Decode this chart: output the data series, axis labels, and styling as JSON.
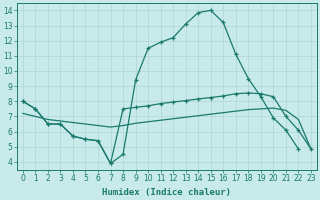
{
  "xlabel": "Humidex (Indice chaleur)",
  "background_color": "#c8eaea",
  "line_color": "#1a7a6e",
  "grid_color": "#b0d4d4",
  "xlim": [
    -0.5,
    23.5
  ],
  "ylim": [
    3.5,
    14.5
  ],
  "xticks": [
    0,
    1,
    2,
    3,
    4,
    5,
    6,
    7,
    8,
    9,
    10,
    11,
    12,
    13,
    14,
    15,
    16,
    17,
    18,
    19,
    20,
    21,
    22,
    23
  ],
  "yticks": [
    4,
    5,
    6,
    7,
    8,
    9,
    10,
    11,
    12,
    13,
    14
  ],
  "line1_x": [
    0,
    1,
    2,
    3,
    4,
    5,
    6,
    7,
    8,
    9,
    10,
    11,
    12,
    13,
    14,
    15,
    16,
    17,
    18,
    19,
    20,
    21,
    22
  ],
  "line1_y": [
    8.0,
    7.5,
    6.5,
    6.5,
    5.7,
    5.5,
    5.4,
    3.9,
    4.5,
    9.4,
    11.5,
    11.9,
    12.2,
    13.1,
    13.85,
    14.0,
    13.2,
    11.1,
    9.5,
    8.3,
    6.9,
    6.1,
    4.85
  ],
  "line2_x": [
    0,
    1,
    2,
    3,
    4,
    5,
    6,
    7,
    8,
    9,
    10,
    11,
    12,
    13,
    14,
    15,
    16,
    17,
    18,
    19,
    20,
    21,
    22,
    23
  ],
  "line2_y": [
    8.0,
    7.5,
    6.5,
    6.5,
    5.7,
    5.5,
    5.4,
    3.9,
    7.5,
    7.6,
    7.7,
    7.85,
    7.95,
    8.05,
    8.15,
    8.25,
    8.35,
    8.5,
    8.55,
    8.5,
    8.3,
    7.0,
    6.1,
    4.85
  ],
  "line3_x": [
    0,
    1,
    2,
    3,
    4,
    5,
    6,
    7,
    8,
    9,
    10,
    11,
    12,
    13,
    14,
    15,
    16,
    17,
    18,
    19,
    20,
    21,
    22,
    23
  ],
  "line3_y": [
    7.2,
    7.0,
    6.8,
    6.7,
    6.6,
    6.5,
    6.4,
    6.3,
    6.4,
    6.55,
    6.65,
    6.75,
    6.85,
    6.95,
    7.05,
    7.15,
    7.25,
    7.35,
    7.45,
    7.5,
    7.55,
    7.4,
    6.8,
    4.85
  ]
}
